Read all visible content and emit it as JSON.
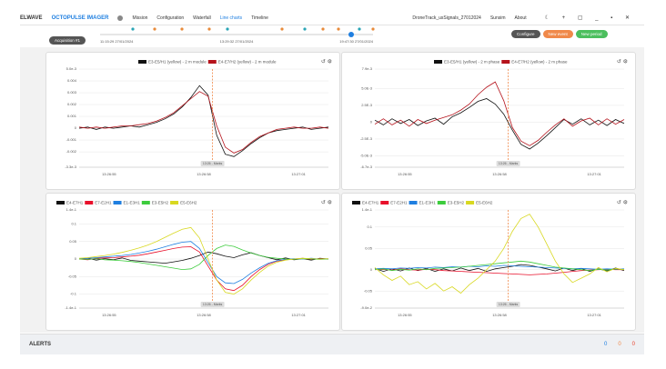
{
  "header": {
    "brand": "ELWAVE",
    "product": "OCTOPULSE IMAGER",
    "tabs": [
      "Mission",
      "Configuration",
      "Waterfall",
      "Line charts",
      "Timeline"
    ],
    "active_tab": "Line charts",
    "file": "DroneTrack_usSignals_27012024",
    "links": [
      "Sunsim",
      "About"
    ]
  },
  "toolbar": {
    "acquisition": "Acquisition #1",
    "times": [
      "11:15:29 27/01/2024",
      "13:29:32 27/01/2024",
      "19:47:30 27/01/2024"
    ],
    "buttons": [
      "Configure",
      "New event",
      "New period"
    ]
  },
  "panels": [
    {
      "marker": "13:26 - Marks",
      "xticks": [
        "13:26:55",
        "13:26:58",
        "13:27:01"
      ],
      "ylim": [
        -0.0033,
        0.005
      ],
      "yticks": [
        {
          "value": 0.005,
          "label": "5.0e-3"
        },
        0.004,
        0.003,
        0.002,
        0.001,
        0,
        -0.001,
        -0.002,
        {
          "value": -0.0033,
          "label": "-3.3e-3"
        }
      ],
      "series": [
        {
          "name": "E3-E5/H1 (yellow) - 2 m module",
          "color": "#111111",
          "values": [
            0,
            0.0001,
            -0.0001,
            0.0001,
            0,
            0.0001,
            0.0002,
            0.0001,
            0.0003,
            0.0005,
            0.0008,
            0.0012,
            0.0018,
            0.0026,
            0.0036,
            0.0028,
            -0.0006,
            -0.0022,
            -0.0024,
            -0.0019,
            -0.0013,
            -0.0008,
            -0.0004,
            -0.0002,
            -0.0001,
            0,
            0.0001,
            -0.0001,
            0,
            0.0001
          ]
        },
        {
          "name": "E4-E7/H2 (yellow) - 2 m module",
          "color": "#b5121b",
          "values": [
            0.0001,
            0,
            0.0001,
            0,
            0.0001,
            0.0002,
            0.0002,
            0.0003,
            0.0004,
            0.0006,
            0.0009,
            0.0013,
            0.0019,
            0.0025,
            0.0031,
            0.0027,
            0.0002,
            -0.0016,
            -0.0021,
            -0.0018,
            -0.0012,
            -0.0007,
            -0.0004,
            -0.0001,
            0,
            0.0001,
            0,
            0,
            0.0001,
            0
          ]
        }
      ]
    },
    {
      "marker": "13:26 - Marks",
      "xticks": [
        "13:26:55",
        "13:26:58",
        "13:27:01"
      ],
      "ylim": [
        -0.0067,
        0.0079
      ],
      "yticks": [
        {
          "value": 0.0079,
          "label": "7.9e-3"
        },
        {
          "value": 0.005,
          "label": "5.0E-3"
        },
        {
          "value": 0.0025,
          "label": "2.5E-3"
        },
        0,
        {
          "value": -0.0025,
          "label": "-2.5E-3"
        },
        {
          "value": -0.005,
          "label": "-5.0E-3"
        },
        {
          "value": -0.0067,
          "label": "-6.7e-3"
        }
      ],
      "series": [
        {
          "name": "E3-E5/H1 (yellow) - 2 m phase",
          "color": "#111111",
          "values": [
            0.0003,
            -0.0004,
            0.0005,
            -0.0002,
            0.0004,
            -0.0005,
            0.0002,
            0.0006,
            -0.0003,
            0.0008,
            0.0014,
            0.0022,
            0.0031,
            0.0035,
            0.0027,
            0.0012,
            -0.0012,
            -0.0033,
            -0.004,
            -0.0031,
            -0.002,
            -0.0008,
            0.0004,
            -0.0003,
            0.0005,
            -0.0004,
            0.0003,
            -0.0005,
            0.0004,
            -0.0002
          ]
        },
        {
          "name": "E4-E7/H2 (yellow) - 2 m phase",
          "color": "#b5121b",
          "values": [
            -0.0003,
            0.0005,
            -0.0004,
            0.0003,
            -0.0006,
            0.0004,
            -0.0002,
            0.0003,
            0.0007,
            0.0011,
            0.0018,
            0.0027,
            0.0041,
            0.0052,
            0.006,
            0.0032,
            -0.0008,
            -0.0028,
            -0.0035,
            -0.0027,
            -0.0015,
            -0.0004,
            0.0005,
            -0.0006,
            0.0002,
            0.0006,
            -0.0004,
            0.0005,
            -0.0003,
            0.0004
          ]
        }
      ]
    },
    {
      "marker": "13:26 - Marks",
      "xticks": [
        "13:26:55",
        "13:26:58",
        "13:27:01"
      ],
      "ylim": [
        -0.14,
        0.14
      ],
      "yticks": [
        {
          "value": 0.14,
          "label": "1.4e-1"
        },
        0.1,
        0.05,
        0,
        -0.05,
        -0.1,
        {
          "value": -0.14,
          "label": "-1.4e-1"
        }
      ],
      "series": [
        {
          "name": "E4-E7H1",
          "color": "#111111",
          "values": [
            0,
            0.002,
            -0.003,
            0.001,
            -0.002,
            0.003,
            -0.004,
            -0.006,
            -0.008,
            -0.01,
            -0.012,
            -0.008,
            -0.004,
            0.002,
            0.01,
            0.02,
            0.015,
            0.008,
            0.004,
            0.012,
            0.018,
            0.01,
            0.004,
            -0.002,
            0.003,
            -0.002,
            0.001,
            -0.003,
            0.002,
            0
          ]
        },
        {
          "name": "E7-E2H1",
          "color": "#e8102b",
          "values": [
            0,
            -0.002,
            0.002,
            0.003,
            0.004,
            0.006,
            0.008,
            0.011,
            0.015,
            0.02,
            0.025,
            0.03,
            0.034,
            0.035,
            0.02,
            -0.02,
            -0.06,
            -0.085,
            -0.09,
            -0.075,
            -0.05,
            -0.03,
            -0.015,
            -0.006,
            -0.002,
            0,
            0.002,
            -0.001,
            0.001,
            0
          ]
        },
        {
          "name": "E1-E3H1",
          "color": "#1f7fe0",
          "values": [
            0.001,
            0.002,
            0.004,
            0.006,
            0.008,
            0.01,
            0.013,
            0.017,
            0.022,
            0.028,
            0.035,
            0.042,
            0.048,
            0.05,
            0.03,
            -0.01,
            -0.05,
            -0.068,
            -0.07,
            -0.058,
            -0.04,
            -0.025,
            -0.012,
            -0.005,
            -0.001,
            0.001,
            0,
            0.002,
            0,
            0.001
          ]
        },
        {
          "name": "E3-E5H2",
          "color": "#3dcc3d",
          "values": [
            0,
            -0.001,
            0.001,
            -0.002,
            -0.003,
            -0.005,
            -0.007,
            -0.01,
            -0.014,
            -0.018,
            -0.022,
            -0.026,
            -0.03,
            -0.028,
            -0.015,
            0.01,
            0.03,
            0.04,
            0.036,
            0.026,
            0.017,
            0.01,
            0.005,
            0.002,
            0,
            -0.001,
            0.001,
            0,
            -0.001,
            0
          ]
        },
        {
          "name": "E5-E6H2",
          "color": "#d8d820",
          "values": [
            0.002,
            0.004,
            0.007,
            0.01,
            0.014,
            0.019,
            0.025,
            0.032,
            0.04,
            0.05,
            0.062,
            0.074,
            0.085,
            0.09,
            0.06,
            0.0,
            -0.06,
            -0.095,
            -0.1,
            -0.085,
            -0.06,
            -0.038,
            -0.02,
            -0.009,
            -0.003,
            0,
            0.002,
            0.001,
            0,
            0.001
          ]
        }
      ]
    },
    {
      "marker": "13:26 - Marks",
      "xticks": [
        "13:26:55",
        "13:26:58",
        "13:27:01"
      ],
      "ylim": [
        -0.09,
        0.14
      ],
      "yticks": [
        {
          "value": 0.14,
          "label": "1.4e-1"
        },
        0.1,
        0.05,
        0,
        -0.05,
        {
          "value": -0.09,
          "label": "-9.0e-2"
        }
      ],
      "series": [
        {
          "name": "E4-E7H1",
          "color": "#111111",
          "values": [
            0.003,
            -0.004,
            0.002,
            -0.003,
            0.004,
            -0.002,
            0.003,
            -0.004,
            0.002,
            -0.003,
            0.004,
            -0.002,
            0.003,
            -0.004,
            0.002,
            0.005,
            0.008,
            0.012,
            0.01,
            0.006,
            0.002,
            -0.003,
            0.004,
            -0.002,
            0.003,
            -0.004,
            0.002,
            -0.003,
            0.004,
            -0.002
          ]
        },
        {
          "name": "E7-E2H1",
          "color": "#e8102b",
          "values": [
            0,
            0.001,
            -0.001,
            0.002,
            0,
            -0.001,
            0.001,
            0,
            -0.002,
            -0.003,
            -0.004,
            -0.005,
            -0.006,
            -0.007,
            -0.008,
            -0.009,
            -0.01,
            -0.011,
            -0.012,
            -0.011,
            -0.01,
            -0.008,
            -0.006,
            -0.004,
            -0.002,
            -0.001,
            0,
            0.001,
            0,
            0
          ]
        },
        {
          "name": "E1-E3H1",
          "color": "#1f7fe0",
          "values": [
            0.002,
            0.003,
            0.002,
            0.004,
            0.003,
            0.005,
            0.004,
            0.006,
            0.005,
            0.007,
            0.006,
            0.008,
            0.007,
            0.009,
            0.008,
            0.01,
            0.009,
            0.008,
            0.007,
            0.006,
            0.005,
            0.004,
            0.003,
            0.002,
            0.003,
            0.002,
            0.001,
            0.002,
            0.001,
            0.002
          ]
        },
        {
          "name": "E3-E5H2",
          "color": "#3dcc3d",
          "values": [
            0,
            0.002,
            -0.002,
            0.001,
            -0.001,
            0.002,
            0,
            0.003,
            0.004,
            0.005,
            0.006,
            0.008,
            0.01,
            0.012,
            0.014,
            0.016,
            0.018,
            0.02,
            0.018,
            0.014,
            0.01,
            0.006,
            0.004,
            0.002,
            0,
            -0.002,
            0.001,
            -0.001,
            0.002,
            0
          ]
        },
        {
          "name": "E5-E6H2",
          "color": "#d8d820",
          "values": [
            0.005,
            -0.012,
            -0.025,
            -0.015,
            -0.035,
            -0.028,
            -0.045,
            -0.032,
            -0.05,
            -0.04,
            -0.055,
            -0.035,
            -0.02,
            0.0,
            0.02,
            0.05,
            0.09,
            0.12,
            0.13,
            0.1,
            0.06,
            0.02,
            -0.01,
            -0.03,
            -0.02,
            -0.01,
            0.005,
            -0.005,
            0.003,
            0
          ]
        }
      ]
    }
  ],
  "footer": {
    "alerts": "ALERTS",
    "counts": [
      "0",
      "0",
      "0"
    ]
  }
}
